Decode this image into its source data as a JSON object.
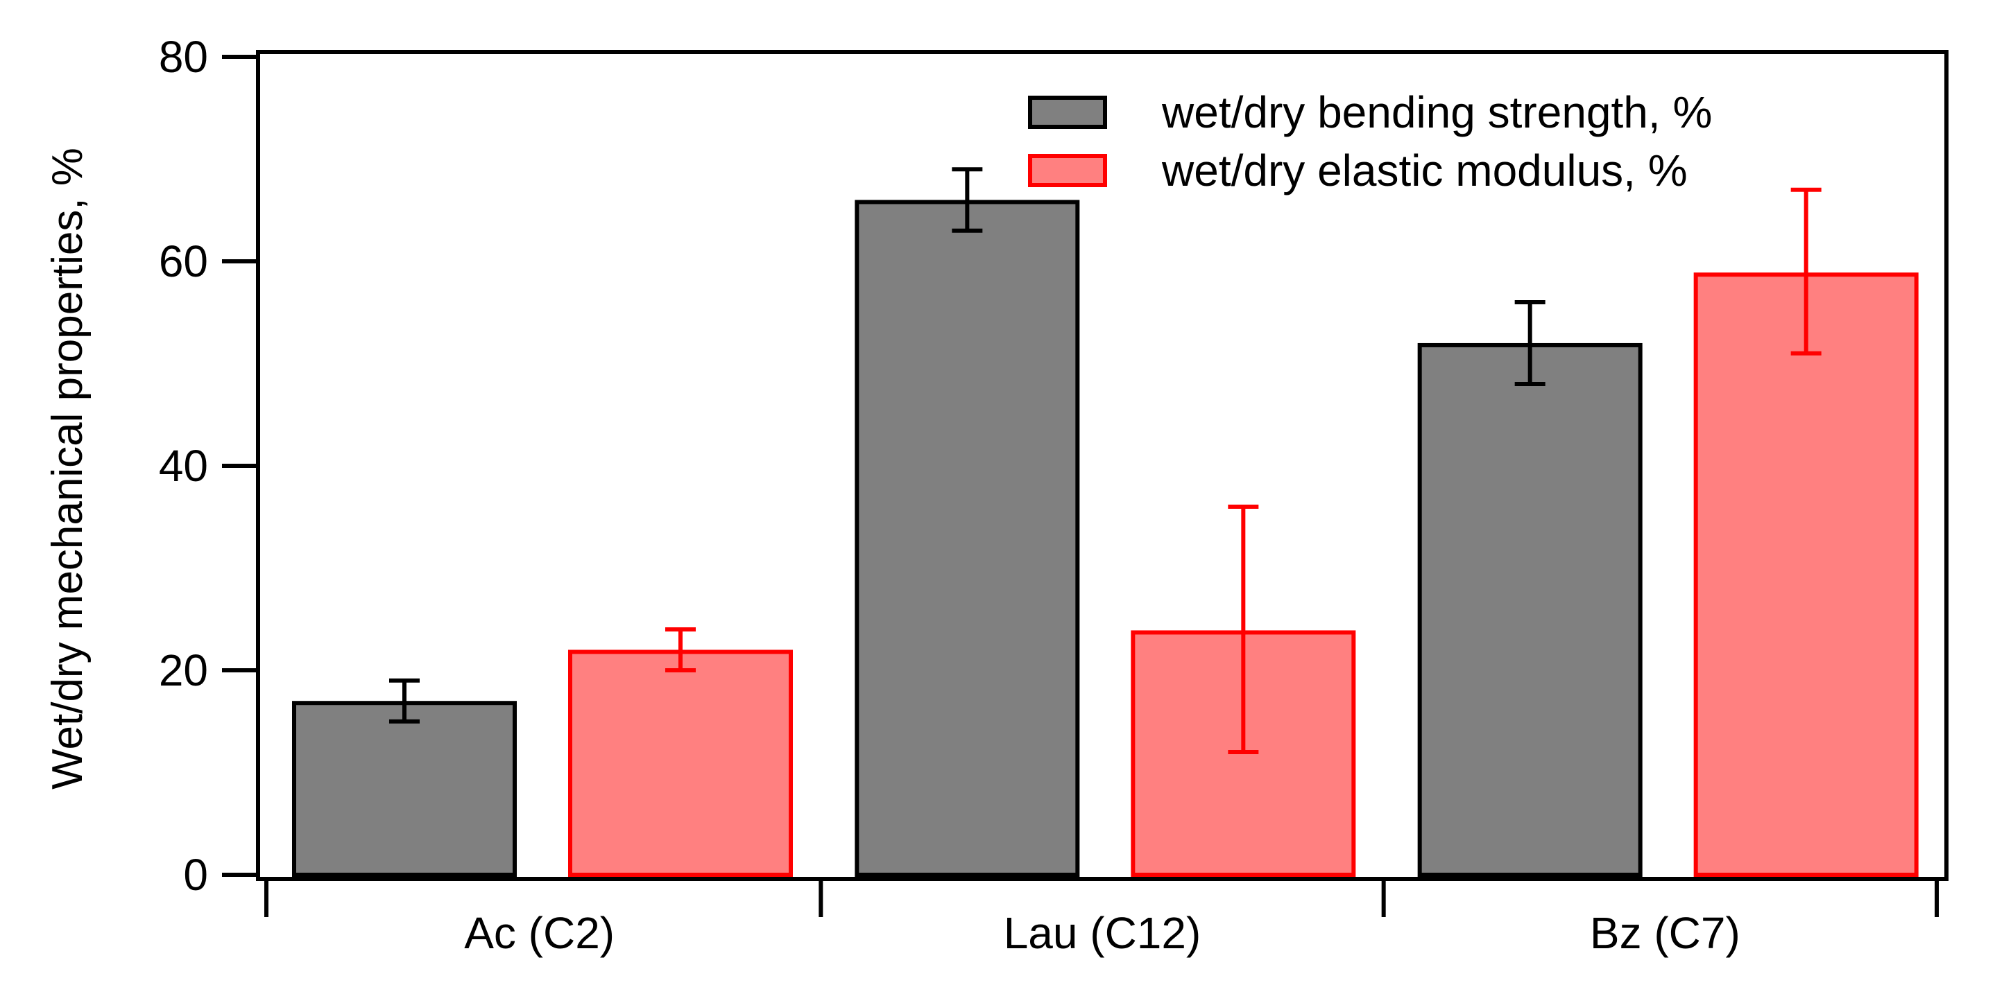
{
  "chart_data": {
    "type": "bar",
    "categories": [
      "Ac (C2)",
      "Lau (C12)",
      "Bz (C7)"
    ],
    "series": [
      {
        "name": "wet/dry bending strength, %",
        "values": [
          16.8,
          65.8,
          51.8
        ],
        "error_low": [
          15.0,
          63.0,
          48.0
        ],
        "error_high": [
          19.0,
          69.0,
          56.0
        ],
        "fill": "#808080",
        "stroke": "#000000"
      },
      {
        "name": "wet/dry elastic modulus, %",
        "values": [
          21.8,
          23.7,
          58.7
        ],
        "error_low": [
          20.0,
          12.0,
          51.0
        ],
        "error_high": [
          24.0,
          36.0,
          67.0
        ],
        "fill": "#ff8080",
        "stroke": "#ff0000"
      }
    ],
    "ylabel": "Wet/dry mechanical properties, %",
    "xlabel": "",
    "ylim": [
      0,
      80
    ],
    "yticks": [
      0,
      20,
      40,
      60,
      80
    ],
    "grid": false,
    "legend": "top-right"
  }
}
